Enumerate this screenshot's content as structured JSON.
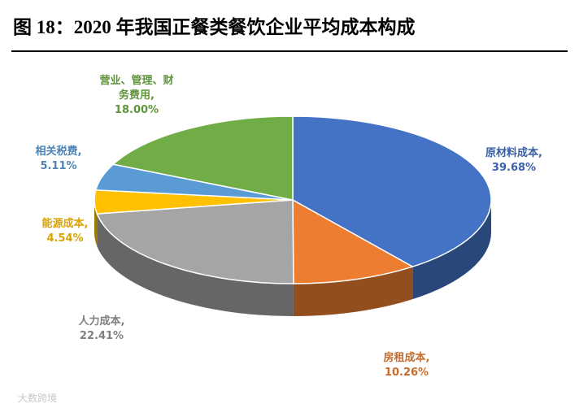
{
  "chart_data": {
    "type": "pie",
    "title": "图 18：2020 年我国正餐类餐饮企业平均成本构成",
    "categories": [
      "原材料成本,",
      "房租成本,",
      "人力成本,",
      "能源成本,",
      "相关税费,",
      "营业、管理、财务费用,"
    ],
    "values": [
      39.68,
      10.26,
      22.41,
      4.54,
      5.11,
      18.0
    ],
    "value_labels": [
      "39.68%",
      "10.26%",
      "22.41%",
      "4.54%",
      "5.11%",
      "18.00%"
    ],
    "colors": [
      "#4472c4",
      "#ed7d31",
      "#a5a5a5",
      "#ffc000",
      "#5b9bd5",
      "#70ad47"
    ]
  },
  "watermark": "大数跨境"
}
